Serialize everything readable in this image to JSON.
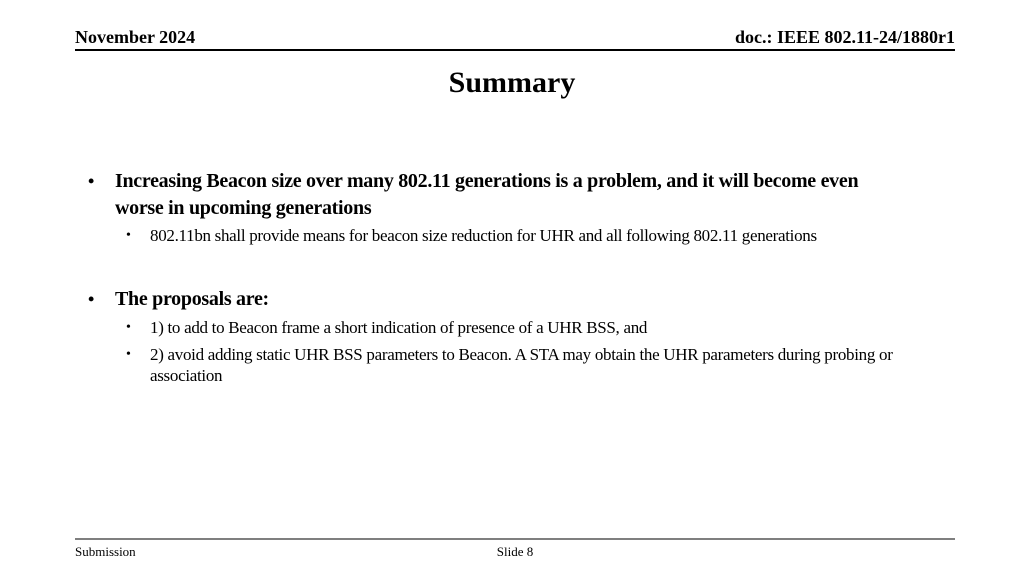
{
  "header": {
    "date": "November 2024",
    "doc_id": "doc.: IEEE 802.11-24/1880r1"
  },
  "title": "Summary",
  "content": {
    "bullets": [
      {
        "text": "Increasing Beacon size over many 802.11 generations is a problem, and it will become even\nworse in upcoming generations",
        "subs": [
          "802.11bn shall provide means for beacon size reduction for UHR and all following 802.11 generations"
        ]
      },
      {
        "text": "The proposals are:",
        "subs": [
          "1) to add to Beacon frame a short indication of presence of a UHR BSS, and",
          "2) avoid adding static UHR BSS parameters to Beacon. A STA may obtain the UHR parameters during probing or\nassociation"
        ]
      }
    ],
    "bullet_glyph": "•"
  },
  "footer": {
    "left": "Submission",
    "page": "Slide 8"
  },
  "colors": {
    "background": "#ffffff",
    "text": "#000000",
    "header_rule": "#000000",
    "footer_rule": "#7f7f7f"
  }
}
